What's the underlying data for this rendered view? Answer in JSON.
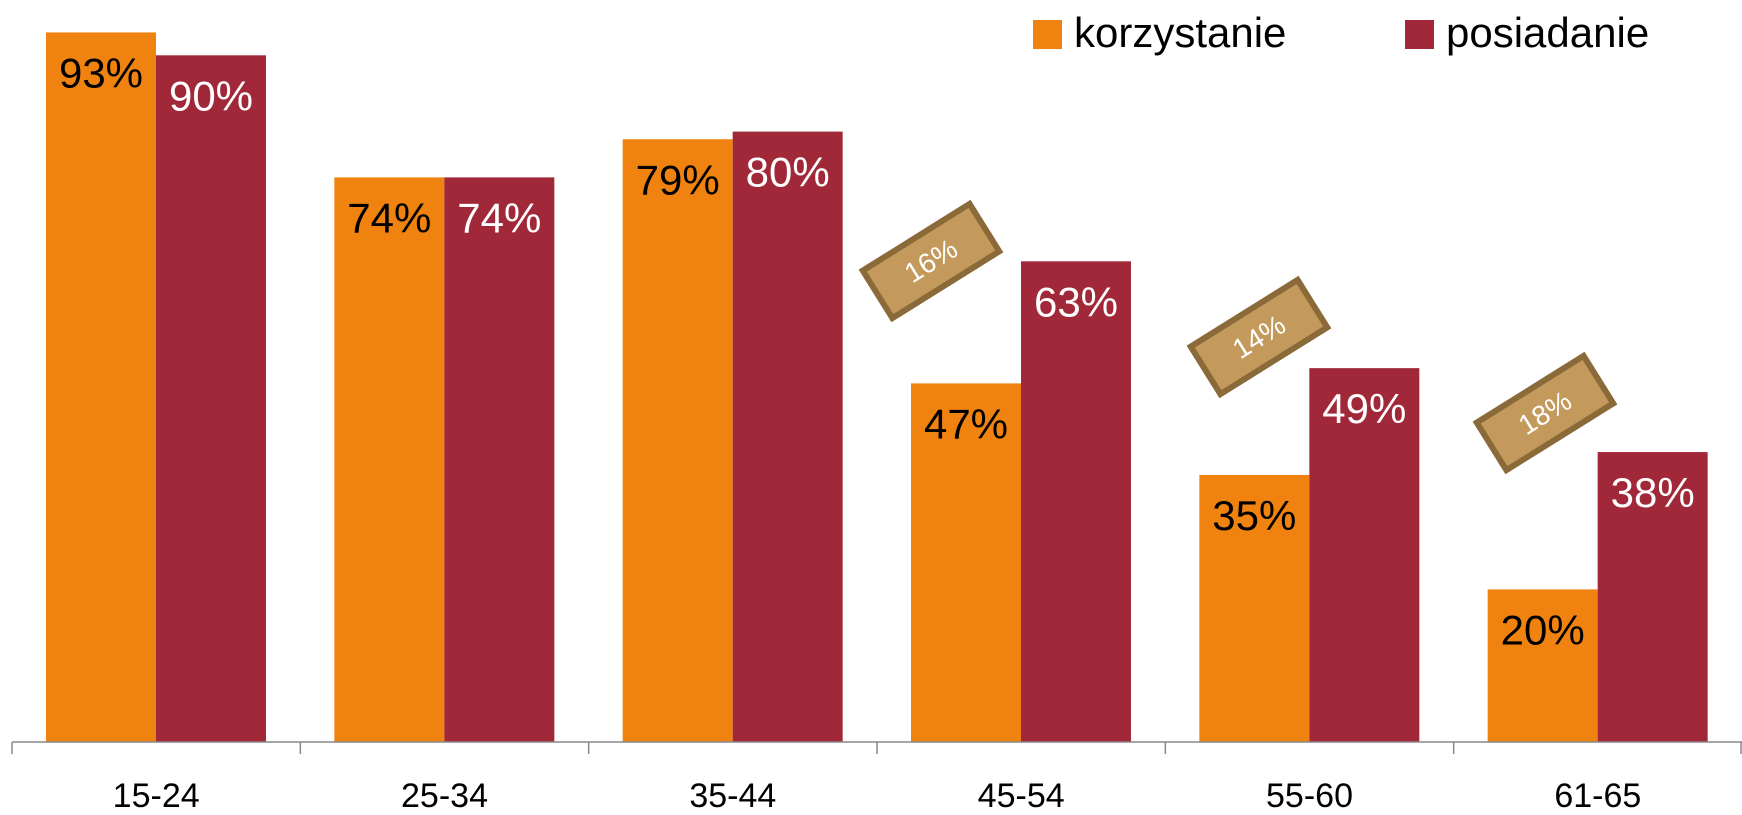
{
  "chart_data": {
    "type": "bar",
    "categories": [
      "15-24",
      "25-34",
      "35-44",
      "45-54",
      "55-60",
      "61-65"
    ],
    "series": [
      {
        "name": "korzystanie",
        "color": "#f0820f",
        "values": [
          93,
          74,
          79,
          47,
          35,
          20
        ],
        "value_labels": [
          "93%",
          "74%",
          "79%",
          "47%",
          "35%",
          "20%"
        ]
      },
      {
        "name": "posiadanie",
        "color": "#a12838",
        "values": [
          90,
          74,
          80,
          63,
          49,
          38
        ],
        "value_labels": [
          "90%",
          "74%",
          "80%",
          "63%",
          "49%",
          "38%"
        ]
      }
    ],
    "annotations": [
      "16%",
      "14%",
      "18%"
    ],
    "ylim": [
      0,
      100
    ],
    "legend": "top-right"
  }
}
